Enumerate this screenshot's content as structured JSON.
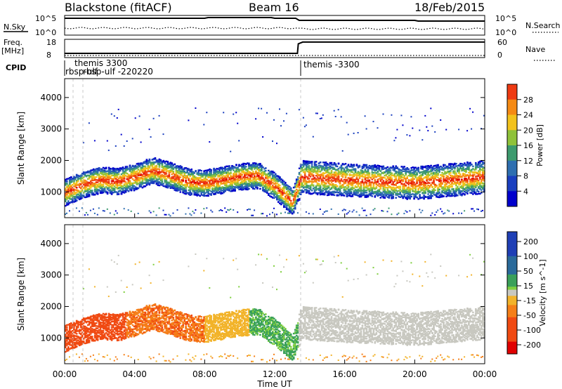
{
  "header": {
    "station": "Blackstone (fitACF)",
    "beam": "Beam 16",
    "date": "18/Feb/2015"
  },
  "small_panels": {
    "nsky_label": "N.Sky",
    "nsearch_label": "N.Search",
    "noise_ticks": [
      "10^5",
      "10^0"
    ],
    "freq_label": "Freq.",
    "freq_unit": "[MHz]",
    "freq_ticks": [
      "18",
      "8"
    ],
    "nave_label": "Nave",
    "nave_ticks": [
      "60",
      "0"
    ],
    "cpid_label": "CPID",
    "cpid_entries": [
      {
        "name": "themis 3300",
        "start_hour": 1.1
      },
      {
        "name": "rbsp-ulf",
        "start_hour": 0.2
      },
      {
        "name": "rbsp-ulf -220220",
        "start_hour": 0.95
      },
      {
        "name": "themis -3300",
        "start_hour": 13.35
      }
    ],
    "frequency_mhz": [
      {
        "x": 0,
        "y": 10.3
      },
      {
        "x": 13.3,
        "y": 10.3
      },
      {
        "x": 13.35,
        "y": 15.5
      },
      {
        "x": 13.6,
        "y": 16.5
      },
      {
        "x": 24,
        "y": 16.5
      }
    ]
  },
  "chart_data": [
    {
      "type": "heatmap",
      "panel": "power",
      "ylabel": "Slant Range [km]",
      "xlabel": "",
      "xlim": [
        0,
        24
      ],
      "ylim": [
        180,
        4600
      ],
      "yticks": [
        1000,
        2000,
        3000,
        4000
      ],
      "colorbar": {
        "label": "Power [dB]",
        "range": [
          0,
          32
        ],
        "ticks": [
          4,
          8,
          12,
          16,
          20,
          24,
          28
        ]
      },
      "main_echo_range_km": [
        {
          "x": 0,
          "y": 1000
        },
        {
          "x": 1,
          "y": 1250
        },
        {
          "x": 2,
          "y": 1400
        },
        {
          "x": 3,
          "y": 1350
        },
        {
          "x": 4,
          "y": 1500
        },
        {
          "x": 5,
          "y": 1700
        },
        {
          "x": 6,
          "y": 1550
        },
        {
          "x": 7,
          "y": 1350
        },
        {
          "x": 8,
          "y": 1300
        },
        {
          "x": 9,
          "y": 1400
        },
        {
          "x": 10,
          "y": 1500
        },
        {
          "x": 11,
          "y": 1550
        },
        {
          "x": 12,
          "y": 1200
        },
        {
          "x": 13,
          "y": 700
        },
        {
          "x": 13.5,
          "y": 1500
        },
        {
          "x": 16,
          "y": 1400
        },
        {
          "x": 20,
          "y": 1300
        },
        {
          "x": 24,
          "y": 1500
        }
      ]
    },
    {
      "type": "heatmap",
      "panel": "velocity",
      "ylabel": "Slant Range [km]",
      "xlabel": "Time UT",
      "xlim": [
        0,
        24
      ],
      "ylim": [
        180,
        4600
      ],
      "yticks": [
        1000,
        2000,
        3000,
        4000
      ],
      "xticks": [
        "00:00",
        "04:00",
        "08:00",
        "12:00",
        "16:00",
        "20:00",
        "00:00"
      ],
      "colorbar": {
        "label": "Velocity [m s^-1]",
        "range": [
          -250,
          250
        ],
        "ticks": [
          200,
          100,
          50,
          15,
          -15,
          -50,
          -100,
          -200
        ]
      }
    }
  ]
}
